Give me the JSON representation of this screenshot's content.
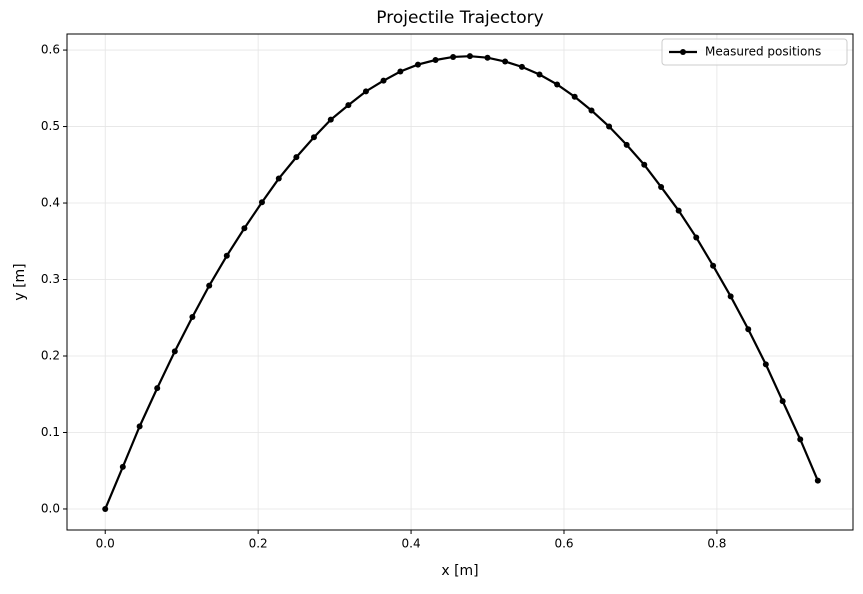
{
  "chart_data": {
    "type": "line",
    "title": "Projectile Trajectory",
    "xlabel": "x [m]",
    "ylabel": "y [m]",
    "x": [
      0,
      0.023,
      0.045,
      0.068,
      0.091,
      0.114,
      0.136,
      0.159,
      0.182,
      0.205,
      0.227,
      0.25,
      0.273,
      0.295,
      0.318,
      0.341,
      0.364,
      0.386,
      0.409,
      0.432,
      0.455,
      0.477,
      0.5,
      0.523,
      0.545,
      0.568,
      0.591,
      0.614,
      0.636,
      0.659,
      0.682,
      0.705,
      0.727,
      0.75,
      0.773,
      0.795,
      0.818,
      0.841,
      0.864,
      0.886,
      0.909,
      0.932
    ],
    "series": [
      {
        "name": "Measured positions",
        "color": "#000000",
        "values": [
          0,
          0.055,
          0.108,
          0.158,
          0.206,
          0.251,
          0.292,
          0.331,
          0.367,
          0.401,
          0.432,
          0.46,
          0.486,
          0.509,
          0.528,
          0.546,
          0.56,
          0.572,
          0.581,
          0.587,
          0.591,
          0.592,
          0.59,
          0.585,
          0.578,
          0.568,
          0.555,
          0.539,
          0.521,
          0.5,
          0.476,
          0.45,
          0.421,
          0.39,
          0.355,
          0.318,
          0.278,
          0.235,
          0.189,
          0.141,
          0.091,
          0.037
        ]
      }
    ],
    "xlim": [
      -0.05,
      0.978
    ],
    "ylim": [
      -0.0275,
      0.621
    ],
    "xticks": [
      {
        "value": 0,
        "label": "0.0"
      },
      0.2,
      0.4,
      0.6,
      0.8
    ],
    "yticks": [
      {
        "value": 0,
        "label": "0.0"
      },
      0.1,
      0.2,
      0.3,
      0.4,
      0.5,
      0.6
    ],
    "grid": true,
    "legend": "upper right"
  }
}
